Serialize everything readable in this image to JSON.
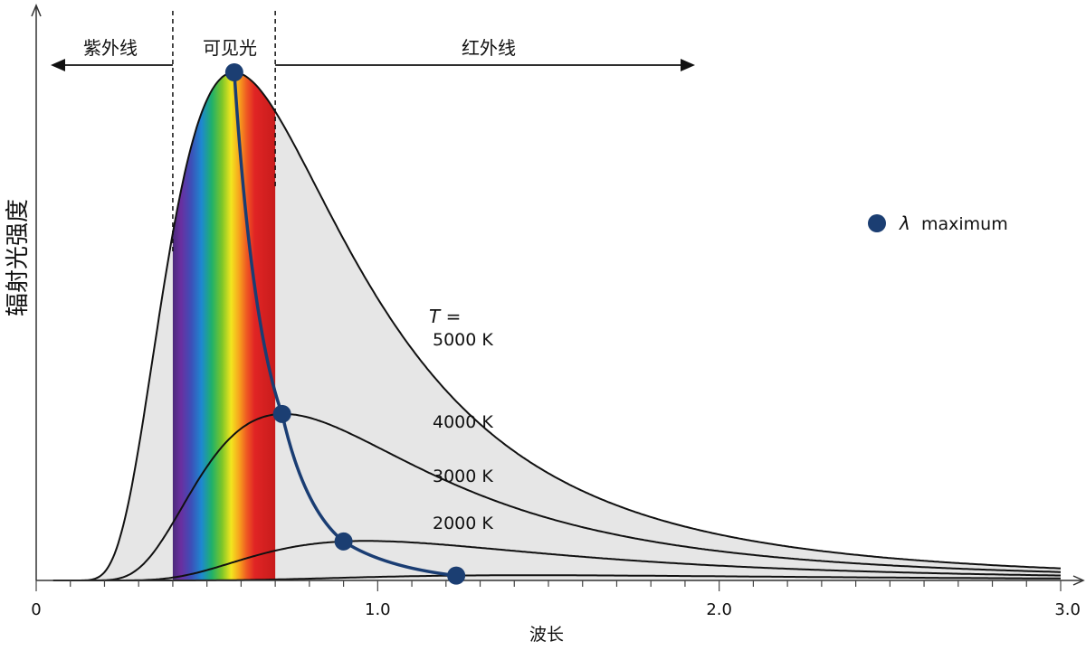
{
  "chart_data": {
    "type": "line",
    "xlabel": "波长",
    "ylabel": "辐射光强度",
    "xlim": [
      0,
      3.0
    ],
    "ylim": [
      0,
      1.0
    ],
    "x_ticks": [
      "0",
      "1.0",
      "2.0",
      "3.0"
    ],
    "regions": [
      {
        "name": "紫外线",
        "range": [
          0,
          0.4
        ]
      },
      {
        "name": "可见光",
        "range": [
          0.4,
          0.7
        ]
      },
      {
        "name": "红外线",
        "range": [
          0.7,
          3.0
        ]
      }
    ],
    "series": [
      {
        "name": "5000 K",
        "temperature": 5000
      },
      {
        "name": "4000 K",
        "temperature": 4000
      },
      {
        "name": "3000 K",
        "temperature": 3000
      },
      {
        "name": "2000 K",
        "temperature": 2000
      }
    ],
    "lambda_max": [
      {
        "temperature": 5000,
        "x": 0.58
      },
      {
        "temperature": 4000,
        "x": 0.72
      },
      {
        "temperature": 3000,
        "x": 0.9
      },
      {
        "temperature": 2000,
        "x": 1.23
      }
    ],
    "curve_label_prefix": "T =",
    "legend": {
      "symbol": "λ",
      "label": "maximum",
      "position": "right"
    },
    "colors": {
      "lambda_max": "#1b3e72",
      "fill": "#e6e6e6",
      "curve": "#111111"
    }
  }
}
